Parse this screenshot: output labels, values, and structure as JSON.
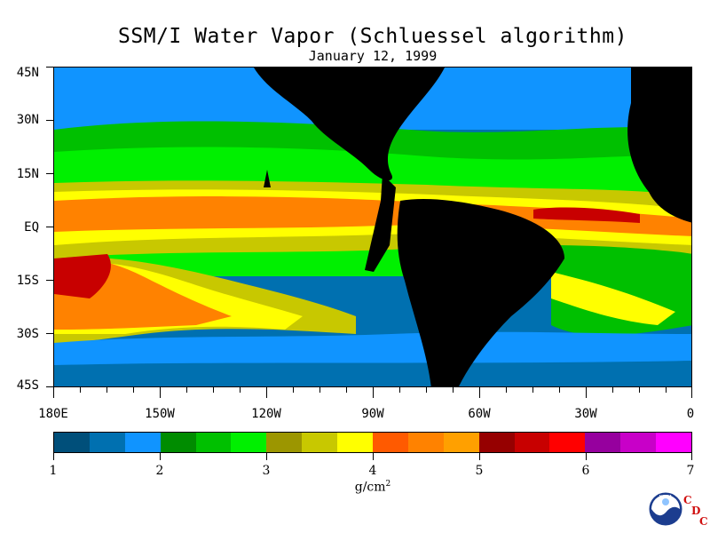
{
  "title": "SSM/I Water Vapor (Schluessel algorithm)",
  "subtitle": "January 12, 1999",
  "latitude_labels": [
    "45N",
    "30N",
    "15N",
    "EQ",
    "15S",
    "30S",
    "45S"
  ],
  "longitude_labels": [
    "180E",
    "150W",
    "120W",
    "90W",
    "60W",
    "30W",
    "0"
  ],
  "colorbar": {
    "tick_labels": [
      "1",
      "2",
      "3",
      "4",
      "5",
      "6",
      "7"
    ],
    "units": "g/cm",
    "units_exponent": "2",
    "colors": [
      "#004f7a",
      "#0070b0",
      "#1094ff",
      "#008c00",
      "#00c000",
      "#00f000",
      "#9c9600",
      "#c8c800",
      "#ffff00",
      "#ff5a00",
      "#ff8200",
      "#ffa000",
      "#960000",
      "#c80000",
      "#ff0000",
      "#96009e",
      "#c800c8",
      "#ff00ff"
    ]
  },
  "logo": {
    "name": "noaa-logo-icon",
    "text": "NOAA",
    "letters": [
      "C",
      "D",
      "C"
    ]
  }
}
